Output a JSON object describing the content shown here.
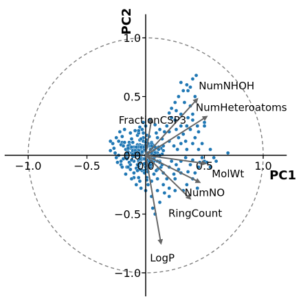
{
  "chart_data": {
    "type": "scatter",
    "title": "",
    "xlabel": "PC1",
    "ylabel": "PC2",
    "xlim": [
      -1.2,
      1.2
    ],
    "ylim": [
      -1.2,
      1.2
    ],
    "grid": false,
    "unit_circle": true,
    "x_ticks": [
      {
        "value": -1.0,
        "label": "−1.0"
      },
      {
        "value": -0.5,
        "label": "−0.5"
      },
      {
        "value": 0.0,
        "label": "0.0"
      },
      {
        "value": 0.5,
        "label": "0.5"
      },
      {
        "value": 1.0,
        "label": "1.0"
      }
    ],
    "y_ticks": [
      {
        "value": 1.0,
        "label": "1.0"
      },
      {
        "value": 0.5,
        "label": "0.5"
      },
      {
        "value": 0.0,
        "label": "0.0"
      },
      {
        "value": -0.5,
        "label": "−0.5"
      },
      {
        "value": -1.0,
        "label": "−1.0"
      }
    ],
    "loadings": [
      {
        "name": "NumNHOH",
        "x": 0.44,
        "y": 0.48
      },
      {
        "name": "NumHeteroatoms",
        "x": 0.52,
        "y": 0.33
      },
      {
        "name": "FractionCSP3",
        "x": 0.05,
        "y": 0.31
      },
      {
        "name": "MolWt",
        "x": 0.51,
        "y": -0.07
      },
      {
        "name": "NumNO",
        "x": 0.46,
        "y": -0.23
      },
      {
        "name": "RingCount",
        "x": 0.38,
        "y": -0.37
      },
      {
        "name": "LogP",
        "x": 0.13,
        "y": -0.75
      }
    ],
    "point_color": "#1f77b4",
    "arrow_color": "#666666",
    "circle_color": "#808080",
    "scatter_points": [
      [
        -0.07,
        0.17
      ],
      [
        0.09,
        0.19
      ],
      [
        -0.3,
        0.04
      ],
      [
        0.06,
        -0.03
      ],
      [
        0.01,
        0.17
      ],
      [
        0.14,
        0.14
      ],
      [
        -0.14,
        0.11
      ],
      [
        -0.13,
        0.06
      ],
      [
        0.03,
        0.08
      ],
      [
        -0.05,
        0.09
      ],
      [
        -0.03,
        0.02
      ],
      [
        0.1,
        0.0
      ],
      [
        0.06,
        0.01
      ],
      [
        -0.09,
        0.04
      ],
      [
        -0.01,
        -0.08
      ],
      [
        0.0,
        -0.14
      ],
      [
        0.01,
        0.1
      ],
      [
        0.05,
        -0.03
      ],
      [
        0.08,
        -0.01
      ],
      [
        -0.03,
        0.22
      ],
      [
        -0.06,
        0.19
      ],
      [
        -0.23,
        0.0
      ],
      [
        -0.06,
        -0.05
      ],
      [
        -0.2,
        0.16
      ],
      [
        0.06,
        0.09
      ],
      [
        0.13,
        0.06
      ],
      [
        -0.05,
        0.01
      ],
      [
        0.07,
        -0.16
      ],
      [
        -0.01,
        0.04
      ],
      [
        -0.03,
        0.14
      ],
      [
        -0.01,
        0.05
      ],
      [
        -0.2,
        0.11
      ],
      [
        -0.08,
        -0.11
      ],
      [
        0.03,
        -0.03
      ],
      [
        -0.17,
        0.05
      ],
      [
        -0.1,
        -0.19
      ],
      [
        -0.01,
        0.05
      ],
      [
        0.03,
        -0.07
      ],
      [
        0.02,
        -0.08
      ],
      [
        -0.19,
        -0.03
      ],
      [
        0.06,
        0.05
      ],
      [
        -0.02,
        0.15
      ],
      [
        0.01,
        -0.12
      ],
      [
        -0.03,
        0.08
      ],
      [
        -0.09,
        -0.01
      ],
      [
        0.01,
        -0.06
      ],
      [
        -0.02,
        0.12
      ],
      [
        -0.06,
        -0.04
      ],
      [
        -0.06,
        0.0
      ],
      [
        -0.04,
        -0.02
      ],
      [
        -0.07,
        0.09
      ],
      [
        -0.1,
        0.07
      ],
      [
        0.12,
        -0.05
      ],
      [
        0.02,
        -0.08
      ],
      [
        -0.11,
        0.04
      ],
      [
        0.1,
        -0.05
      ],
      [
        -0.06,
        -0.09
      ],
      [
        -0.21,
        -0.05
      ],
      [
        -0.17,
        0.0
      ],
      [
        0.06,
        0.0
      ],
      [
        -0.12,
        0.14
      ],
      [
        0.1,
        -0.12
      ],
      [
        -0.21,
        -0.08
      ],
      [
        -0.07,
        0.05
      ],
      [
        0.05,
        0.11
      ],
      [
        -0.06,
        0.21
      ],
      [
        -0.14,
        -0.06
      ],
      [
        0.03,
        -0.09
      ],
      [
        0.01,
        0.01
      ],
      [
        0.15,
        0.08
      ],
      [
        0.08,
        0.03
      ],
      [
        -0.18,
        0.11
      ],
      [
        -0.21,
        0.09
      ],
      [
        0.07,
        -0.05
      ],
      [
        0.01,
        -0.19
      ],
      [
        -0.16,
        -0.02
      ],
      [
        -0.0,
        -0.1
      ],
      [
        0.0,
        0.07
      ],
      [
        -0.12,
        0.06
      ],
      [
        -0.07,
        0.05
      ],
      [
        -0.06,
        0.08
      ],
      [
        0.04,
        -0.05
      ],
      [
        -0.01,
        0.08
      ],
      [
        -0.04,
        -0.04
      ],
      [
        0.02,
        -0.14
      ],
      [
        -0.06,
        0.05
      ],
      [
        0.08,
        -0.0
      ],
      [
        0.05,
        -0.08
      ],
      [
        0.05,
        0.0
      ],
      [
        -0.03,
        -0.13
      ],
      [
        0.06,
        0.04
      ],
      [
        -0.05,
        0.02
      ],
      [
        0.02,
        0.02
      ],
      [
        -0.12,
        0.07
      ],
      [
        0.11,
        0.07
      ],
      [
        0.01,
        0.07
      ],
      [
        -0.07,
        0.0
      ],
      [
        0.01,
        0.0
      ],
      [
        -0.08,
        0.05
      ],
      [
        -0.1,
        -0.05
      ],
      [
        -0.04,
        0.04
      ],
      [
        0.05,
        0.06
      ],
      [
        0.07,
        0.04
      ],
      [
        0.14,
        0.01
      ],
      [
        0.05,
        0.02
      ],
      [
        -0.08,
        -0.11
      ],
      [
        -0.05,
        -0.07
      ],
      [
        -0.14,
        0.11
      ],
      [
        -0.12,
        0.02
      ],
      [
        -0.13,
        -0.12
      ],
      [
        0.1,
        0.02
      ],
      [
        -0.13,
        0.19
      ],
      [
        -0.06,
        0.07
      ],
      [
        -0.11,
        0.04
      ],
      [
        -0.16,
        0.01
      ],
      [
        -0.01,
        -0.13
      ],
      [
        0.01,
        0.13
      ],
      [
        0.12,
        -0.06
      ],
      [
        -0.06,
        -0.19
      ],
      [
        0.06,
        -0.02
      ],
      [
        -0.04,
        0.04
      ],
      [
        -0.04,
        0.04
      ],
      [
        -0.04,
        0.02
      ],
      [
        0.12,
        -0.06
      ],
      [
        0.03,
        0.16
      ],
      [
        -0.13,
        -0.08
      ],
      [
        -0.05,
        -0.12
      ],
      [
        -0.11,
        0.11
      ],
      [
        0.02,
        0.1
      ],
      [
        0.08,
        0.0
      ],
      [
        -0.08,
        -0.11
      ],
      [
        0.04,
        -0.1
      ],
      [
        -0.16,
        -0.1
      ],
      [
        -0.01,
        -0.07
      ],
      [
        -0.16,
        -0.03
      ],
      [
        -0.15,
        0.03
      ],
      [
        -0.04,
        0.06
      ],
      [
        -0.05,
        0.04
      ],
      [
        0.07,
        -0.16
      ],
      [
        0.15,
        0.04
      ],
      [
        -0.01,
        -0.03
      ],
      [
        -0.14,
        0.09
      ],
      [
        0.04,
        -0.08
      ],
      [
        0.0,
        0.0
      ],
      [
        -0.02,
        -0.03
      ],
      [
        0.11,
        0.05
      ],
      [
        -0.09,
        0.04
      ],
      [
        0.06,
        -0.03
      ],
      [
        0.11,
        -0.0
      ],
      [
        0.02,
        -0.0
      ],
      [
        -0.06,
        0.04
      ],
      [
        0.1,
        0.15
      ],
      [
        -0.05,
        0.13
      ],
      [
        -0.07,
        -0.08
      ],
      [
        -0.02,
        0.19
      ],
      [
        -0.08,
        0.07
      ],
      [
        -0.04,
        -0.03
      ],
      [
        0.03,
        -0.05
      ],
      [
        0.04,
        0.05
      ],
      [
        -0.11,
        -0.01
      ],
      [
        -0.01,
        -0.15
      ],
      [
        -0.07,
        -0.13
      ],
      [
        -0.0,
        0.11
      ],
      [
        -0.06,
        0.02
      ],
      [
        0.0,
        -0.03
      ],
      [
        -0.07,
        0.02
      ],
      [
        0.08,
        0.07
      ],
      [
        0.05,
        0.1
      ],
      [
        0.11,
        0.05
      ],
      [
        -0.03,
        0.03
      ],
      [
        -0.19,
        0.08
      ],
      [
        0.08,
        0.02
      ],
      [
        -0.04,
        0.14
      ],
      [
        -0.12,
        -0.04
      ],
      [
        -0.05,
        -0.03
      ],
      [
        0.09,
        -0.13
      ],
      [
        -0.23,
        0.12
      ],
      [
        0.06,
        -0.03
      ],
      [
        0.01,
        0.08
      ],
      [
        0.07,
        -0.0
      ],
      [
        -0.01,
        -0.03
      ],
      [
        0.06,
        -0.04
      ],
      [
        -0.15,
        0.08
      ],
      [
        -0.15,
        -0.1
      ],
      [
        0.01,
        -0.09
      ],
      [
        -0.02,
        0.07
      ],
      [
        0.12,
        0.0
      ],
      [
        0.07,
        -0.03
      ],
      [
        0.05,
        0.08
      ],
      [
        -0.09,
        0.21
      ],
      [
        -0.11,
        0.01
      ],
      [
        0.01,
        -0.04
      ],
      [
        0.01,
        -0.0
      ],
      [
        0.13,
        -0.1
      ],
      [
        0.01,
        -0.21
      ],
      [
        -0.04,
        0.07
      ],
      [
        -0.15,
        0.06
      ],
      [
        -0.16,
        0.02
      ],
      [
        -0.09,
        0.02
      ],
      [
        -0.0,
        0.11
      ],
      [
        0.2,
        0.2
      ],
      [
        0.25,
        0.3
      ],
      [
        0.3,
        0.35
      ],
      [
        0.35,
        0.25
      ],
      [
        0.4,
        0.3
      ],
      [
        0.45,
        0.2
      ],
      [
        0.5,
        0.25
      ],
      [
        0.3,
        0.1
      ],
      [
        0.35,
        0.05
      ],
      [
        0.4,
        0.1
      ],
      [
        0.45,
        0.05
      ],
      [
        0.5,
        0.28
      ],
      [
        0.22,
        0.4
      ],
      [
        0.18,
        0.25
      ],
      [
        0.28,
        0.15
      ],
      [
        0.32,
        0.18
      ],
      [
        0.38,
        0.22
      ],
      [
        0.42,
        0.15
      ],
      [
        0.48,
        0.1
      ],
      [
        0.55,
        0.05
      ],
      [
        0.26,
        0.22
      ],
      [
        0.34,
        0.12
      ],
      [
        0.24,
        0.08
      ],
      [
        0.36,
        0.32
      ],
      [
        0.2,
        0.12
      ],
      [
        0.44,
        0.25
      ],
      [
        0.16,
        0.2
      ],
      [
        0.3,
        0.25
      ],
      [
        0.4,
        0.35
      ],
      [
        0.27,
        0.05
      ],
      [
        0.35,
        0.6
      ],
      [
        0.38,
        0.58
      ],
      [
        0.3,
        0.62
      ],
      [
        0.4,
        0.65
      ],
      [
        0.36,
        0.55
      ],
      [
        0.42,
        0.5
      ],
      [
        0.33,
        0.45
      ],
      [
        0.28,
        0.5
      ],
      [
        0.25,
        0.45
      ],
      [
        0.38,
        0.42
      ],
      [
        0.43,
        0.68
      ],
      [
        0.32,
        0.55
      ],
      [
        0.22,
        0.32
      ],
      [
        0.26,
        0.38
      ],
      [
        0.2,
        0.36
      ],
      [
        0.2,
        -0.1
      ],
      [
        0.25,
        -0.2
      ],
      [
        0.3,
        -0.15
      ],
      [
        0.35,
        -0.25
      ],
      [
        0.4,
        -0.2
      ],
      [
        0.45,
        -0.1
      ],
      [
        0.5,
        -0.05
      ],
      [
        0.55,
        -0.1
      ],
      [
        0.6,
        -0.05
      ],
      [
        0.3,
        -0.05
      ],
      [
        0.25,
        -0.3
      ],
      [
        0.15,
        -0.25
      ],
      [
        0.2,
        -0.35
      ],
      [
        0.1,
        -0.3
      ],
      [
        0.05,
        -0.35
      ],
      [
        0.15,
        -0.15
      ],
      [
        0.22,
        -0.05
      ],
      [
        0.28,
        -0.12
      ],
      [
        0.38,
        -0.08
      ],
      [
        0.42,
        -0.15
      ],
      [
        0.48,
        -0.02
      ],
      [
        0.18,
        -0.2
      ],
      [
        0.12,
        -0.4
      ],
      [
        0.08,
        -0.5
      ],
      [
        0.06,
        -0.45
      ],
      [
        0.32,
        -0.3
      ],
      [
        0.16,
        -0.32
      ],
      [
        0.26,
        -0.08
      ],
      [
        0.36,
        -0.14
      ],
      [
        0.7,
        0.02
      ],
      [
        0.44,
        -0.28
      ],
      [
        0.52,
        -0.06
      ],
      [
        0.58,
        -0.02
      ],
      [
        0.24,
        -0.16
      ],
      [
        0.34,
        -0.02
      ],
      [
        0.14,
        -0.08
      ],
      [
        0.46,
        -0.06
      ],
      [
        0.4,
        -0.04
      ],
      [
        0.2,
        -0.28
      ],
      [
        0.1,
        -0.2
      ],
      [
        -0.25,
        0.15
      ],
      [
        -0.28,
        0.1
      ],
      [
        -0.3,
        0.12
      ],
      [
        -0.26,
        0.02
      ],
      [
        -0.24,
        -0.06
      ],
      [
        -0.27,
        0.06
      ],
      [
        -0.22,
        0.2
      ],
      [
        -0.18,
        0.22
      ],
      [
        -0.25,
        -0.02
      ],
      [
        -0.2,
        -0.1
      ],
      [
        -0.02,
        0.28
      ],
      [
        0.04,
        0.3
      ],
      [
        0.0,
        0.25
      ],
      [
        -0.05,
        0.24
      ],
      [
        0.08,
        0.26
      ],
      [
        0.02,
        -0.25
      ],
      [
        -0.05,
        -0.22
      ],
      [
        -0.1,
        -0.15
      ],
      [
        0.0,
        -0.3
      ],
      [
        -0.04,
        -0.28
      ],
      [
        -0.17,
        -0.16
      ],
      [
        -0.12,
        -0.2
      ],
      [
        0.05,
        -0.22
      ],
      [
        -0.08,
        -0.25
      ],
      [
        0.12,
        0.22
      ]
    ]
  }
}
